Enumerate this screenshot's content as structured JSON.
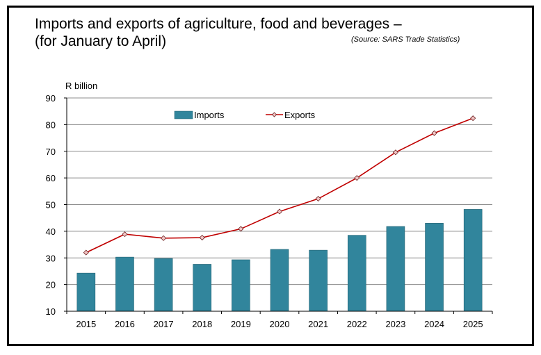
{
  "chart_data": {
    "type": "bar+line",
    "title_line1": "Imports and exports of agriculture, food and beverages –",
    "title_line2": "(for January to April)",
    "source": "(Source: SARS Trade Statistics)",
    "ylabel": "R billion",
    "ylim": [
      10,
      90
    ],
    "yticks": [
      10,
      20,
      30,
      40,
      50,
      60,
      70,
      80,
      90
    ],
    "categories": [
      "2015",
      "2016",
      "2017",
      "2018",
      "2019",
      "2020",
      "2021",
      "2022",
      "2023",
      "2024",
      "2025"
    ],
    "series": [
      {
        "name": "Imports",
        "type": "bar",
        "color": "#31859C",
        "values": [
          24.3,
          30.3,
          29.8,
          27.6,
          29.3,
          33.2,
          32.9,
          38.5,
          41.8,
          43.0,
          48.2
        ]
      },
      {
        "name": "Exports",
        "type": "line",
        "color": "#C00000",
        "marker": "diamond",
        "values": [
          32.0,
          38.9,
          37.4,
          37.6,
          40.9,
          47.4,
          52.2,
          60.0,
          69.6,
          76.8,
          82.4
        ]
      }
    ],
    "grid": true,
    "legend": "top-center"
  }
}
